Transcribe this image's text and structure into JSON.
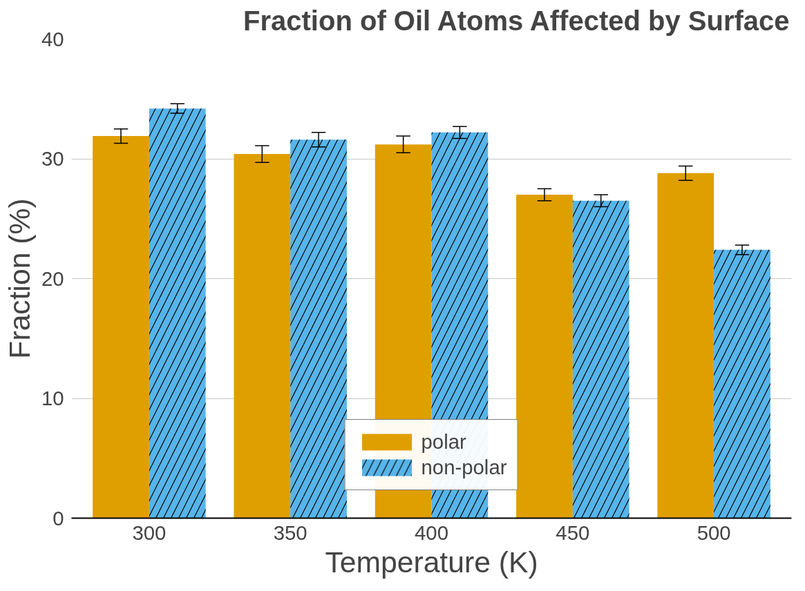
{
  "chart_data": {
    "type": "bar",
    "title": "Fraction of Oil Atoms Affected by Surface",
    "xlabel": "Temperature (K)",
    "ylabel": "Fraction (%)",
    "categories": [
      "300",
      "350",
      "400",
      "450",
      "500"
    ],
    "series": [
      {
        "name": "polar",
        "color": "#e09f00",
        "values": [
          31.9,
          30.4,
          31.2,
          27.0,
          28.8
        ],
        "errors": [
          0.6,
          0.7,
          0.7,
          0.5,
          0.6
        ]
      },
      {
        "name": "non-polar",
        "color": "#56b4e9",
        "values": [
          34.2,
          31.6,
          32.2,
          26.5,
          22.4
        ],
        "errors": [
          0.4,
          0.6,
          0.5,
          0.5,
          0.4
        ]
      }
    ],
    "ylim": [
      0,
      40
    ],
    "yticks": [
      0,
      10,
      20,
      30,
      40
    ],
    "grid": "y",
    "legend": "bottom"
  }
}
